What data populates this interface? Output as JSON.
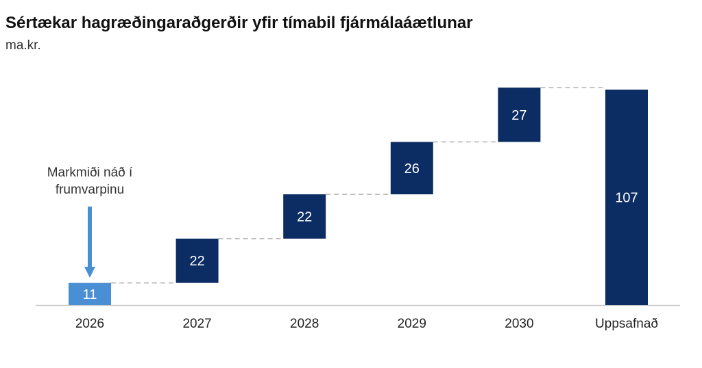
{
  "chart_data": {
    "type": "waterfall",
    "title": "Sértækar hagræðingaraðgerðir yfir tímabil fjármálaáætlunar",
    "subtitle": "ma.kr.",
    "categories": [
      "2026",
      "2027",
      "2028",
      "2029",
      "2030",
      "Uppsafnað"
    ],
    "values": [
      11,
      22,
      22,
      26,
      27,
      107
    ],
    "is_total": [
      false,
      false,
      false,
      false,
      false,
      true
    ],
    "ylim": [
      0,
      107
    ],
    "annotation": {
      "text_lines": [
        "Markmiði náð í",
        "frumvarpinu"
      ],
      "target": "2026"
    },
    "colors": {
      "first": "#4a8fd4",
      "main": "#0c2d63",
      "connector": "#b0b0b0",
      "axis": "#c8c8c8"
    }
  }
}
